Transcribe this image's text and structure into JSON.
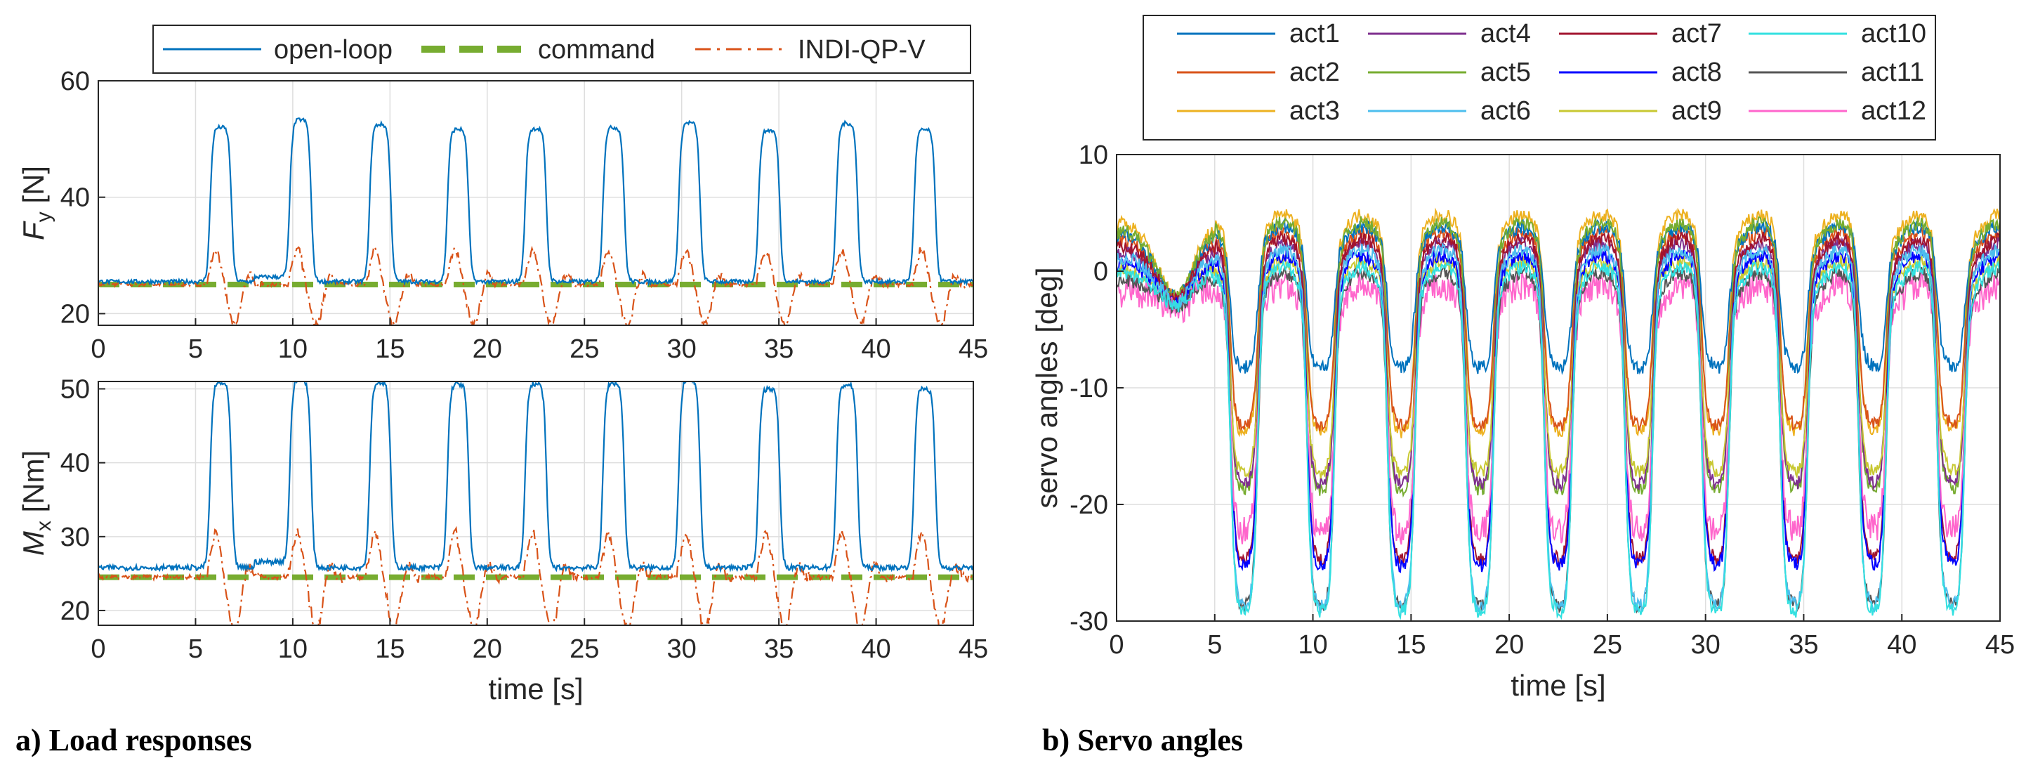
{
  "colors": {
    "open_loop": "#0072BD",
    "command": "#77AC30",
    "indi": "#D95319",
    "acts": [
      "#0072BD",
      "#D95319",
      "#EDB120",
      "#7E2F8E",
      "#77AC30",
      "#4DBEEE",
      "#A2142F",
      "#0000FF",
      "#C8C832",
      "#33E0E0",
      "#555555",
      "#FF66CC"
    ]
  },
  "captions": {
    "a": "a) Load responses",
    "b": "b) Servo angles"
  },
  "chart_data": [
    {
      "type": "line",
      "panel": "a-top",
      "ylabel_main": "F",
      "ylabel_sub": "y",
      "ylabel_unit": " [N]",
      "xlabel": "",
      "xlim": [
        0,
        45
      ],
      "ylim": [
        18,
        60
      ],
      "xticks": [
        0,
        5,
        10,
        15,
        20,
        25,
        30,
        35,
        40,
        45
      ],
      "yticks": [
        20,
        40,
        60
      ],
      "grid": true,
      "legend": {
        "entries": [
          "open-loop",
          "command",
          "INDI-QP-V"
        ],
        "placement": "top-center-outside"
      },
      "series": [
        {
          "name": "open-loop",
          "baseline": 25.5,
          "pulse_times": [
            6.3,
            10.4,
            14.5,
            18.5,
            22.5,
            26.5,
            30.4,
            34.5,
            38.5,
            42.5
          ],
          "pulse_peaks": [
            51.5,
            52.8,
            52.0,
            51.2,
            51.3,
            51.5,
            52.3,
            51.0,
            52.2,
            51.1
          ]
        },
        {
          "name": "command",
          "value": 25.0,
          "x_range": [
            0,
            45
          ]
        },
        {
          "name": "INDI-QP-V",
          "baseline": 25.0,
          "events": [
            6.0,
            10.2,
            14.2,
            18.3,
            22.3,
            26.2,
            30.2,
            34.3,
            38.2,
            42.3
          ],
          "event_peak": 31,
          "event_trough": 18
        }
      ]
    },
    {
      "type": "line",
      "panel": "a-bottom",
      "ylabel_main": "M",
      "ylabel_sub": "x",
      "ylabel_unit": " [Nm]",
      "xlabel": "time [s]",
      "xlim": [
        0,
        45
      ],
      "ylim": [
        18,
        51
      ],
      "xticks": [
        0,
        5,
        10,
        15,
        20,
        25,
        30,
        35,
        40,
        45
      ],
      "yticks": [
        20,
        30,
        40,
        50
      ],
      "grid": true,
      "series": [
        {
          "name": "open-loop",
          "baseline": 25.8,
          "pulse_times": [
            6.3,
            10.4,
            14.5,
            18.5,
            22.5,
            26.5,
            30.4,
            34.5,
            38.5,
            42.5
          ],
          "pulse_peaks": [
            50.3,
            50.8,
            50.4,
            50.2,
            50.2,
            50.3,
            50.8,
            49.6,
            50.1,
            49.6
          ]
        },
        {
          "name": "command",
          "value": 24.5,
          "x_range": [
            0,
            45
          ]
        },
        {
          "name": "INDI-QP-V",
          "baseline": 24.5,
          "events": [
            6.0,
            10.2,
            14.2,
            18.3,
            22.3,
            26.2,
            30.2,
            34.3,
            38.2,
            42.3
          ],
          "event_peak": 30.5,
          "event_trough": 17.5
        }
      ]
    },
    {
      "type": "line",
      "panel": "b",
      "ylabel": "servo angles [deg]",
      "xlabel": "time [s]",
      "xlim": [
        0,
        45
      ],
      "ylim": [
        -30,
        10
      ],
      "xticks": [
        0,
        5,
        10,
        15,
        20,
        25,
        30,
        35,
        40,
        45
      ],
      "yticks": [
        10,
        0,
        -10,
        -20,
        -30
      ],
      "grid": true,
      "legend": {
        "entries": [
          "act1",
          "act4",
          "act7",
          "act10",
          "act2",
          "act5",
          "act8",
          "act11",
          "act3",
          "act6",
          "act9",
          "act12"
        ],
        "placement": "top-outside",
        "columns": 4
      },
      "dip_times": [
        6.5,
        10.4,
        14.5,
        18.5,
        22.5,
        26.6,
        30.5,
        34.5,
        38.5,
        42.5
      ],
      "series": [
        {
          "name": "act1",
          "base": 2.5,
          "dip": -7
        },
        {
          "name": "act2",
          "base": 2.0,
          "dip": -12
        },
        {
          "name": "act3",
          "base": 3.5,
          "dip": -12.5
        },
        {
          "name": "act4",
          "base": 1.0,
          "dip": -17
        },
        {
          "name": "act5",
          "base": 2.8,
          "dip": -17.5
        },
        {
          "name": "act6",
          "base": 0.5,
          "dip": -27.5
        },
        {
          "name": "act7",
          "base": 1.5,
          "dip": -23.5
        },
        {
          "name": "act8",
          "base": 0.0,
          "dip": -24
        },
        {
          "name": "act9",
          "base": -0.5,
          "dip": -16
        },
        {
          "name": "act10",
          "base": -1.0,
          "dip": -28
        },
        {
          "name": "act11",
          "base": -1.5,
          "dip": -27.5
        },
        {
          "name": "act12",
          "base": -2.5,
          "dip": -21
        }
      ]
    }
  ]
}
